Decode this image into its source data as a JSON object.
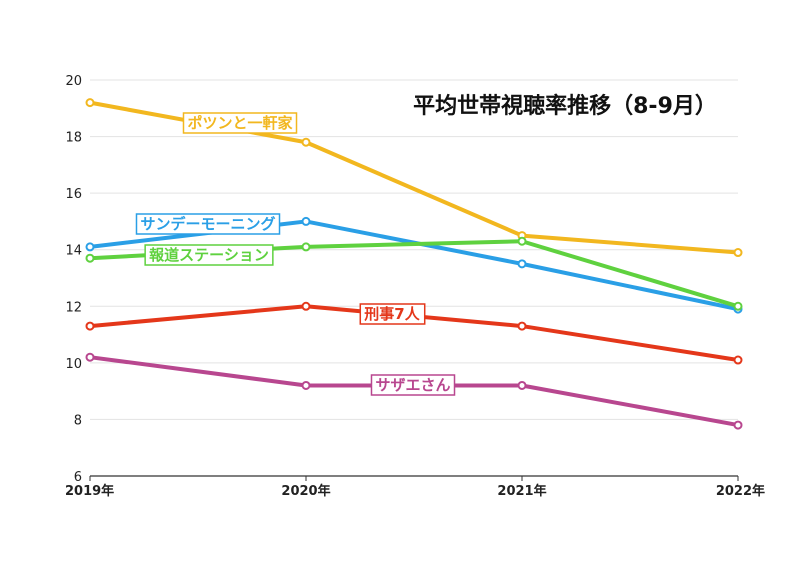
{
  "chart_data": {
    "type": "line",
    "title": "平均世帯視聴率推移（8-9月）",
    "categories": [
      "2019年",
      "2020年",
      "2021年",
      "2022年"
    ],
    "yticks": [
      6,
      8,
      10,
      12,
      14,
      16,
      18,
      20
    ],
    "ylim": [
      6,
      20
    ],
    "grid": true,
    "legend": "inline labels",
    "series": [
      {
        "name": "ポツンと一軒家",
        "values": [
          19.2,
          17.8,
          14.5,
          13.9
        ],
        "color": "#f2b71f"
      },
      {
        "name": "サンデーモーニング",
        "values": [
          14.1,
          15.0,
          13.5,
          11.9
        ],
        "color": "#2a9fe6"
      },
      {
        "name": "報道ステーション",
        "values": [
          13.7,
          14.1,
          14.3,
          12.0
        ],
        "color": "#5fd13f"
      },
      {
        "name": "刑事7人",
        "values": [
          11.3,
          12.0,
          11.3,
          10.1
        ],
        "color": "#e4371a"
      },
      {
        "name": "サザエさん",
        "values": [
          10.2,
          9.2,
          9.2,
          7.8
        ],
        "color": "#b8478f"
      }
    ]
  }
}
